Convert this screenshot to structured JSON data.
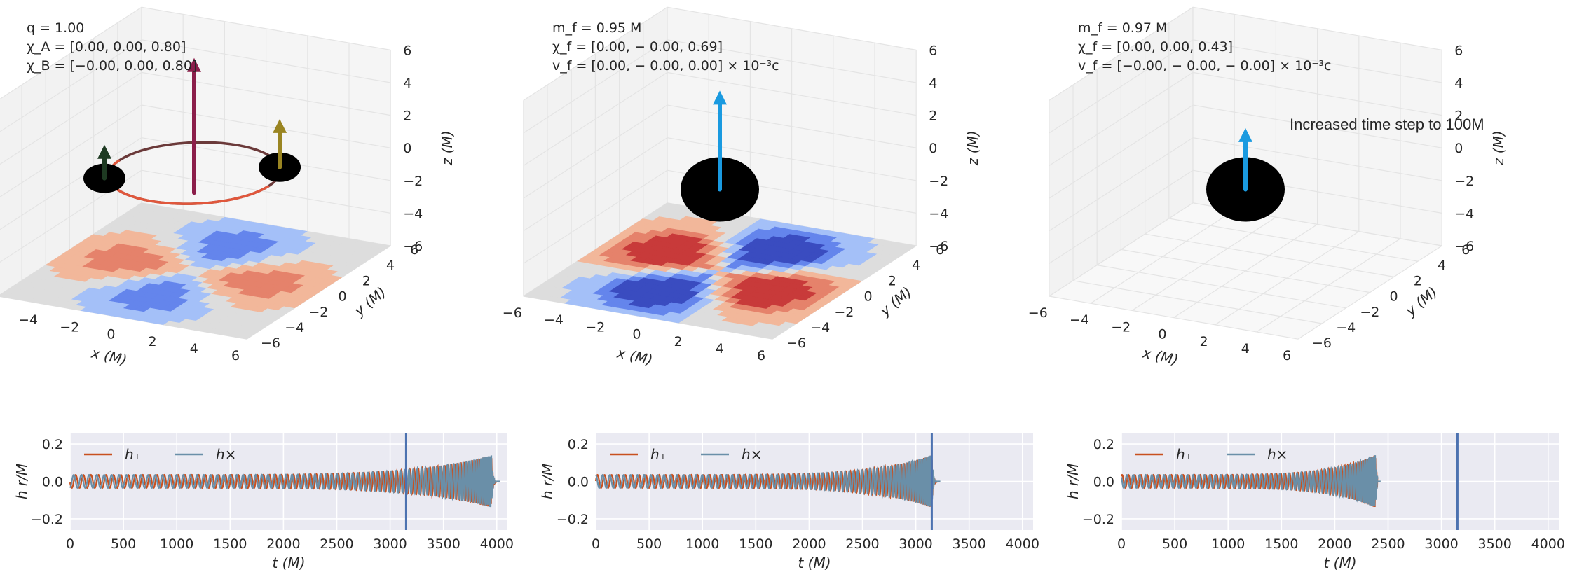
{
  "figure": {
    "colors": {
      "pane_wall": "#f2f2f2",
      "grid_3d": "#e4e4e4",
      "wave_bg": "#eaeaf2",
      "hplus": "#c8501f",
      "hcross": "#6a8fa8",
      "vline": "#4c72b0",
      "orbit": "#6b3a3a",
      "orbit_front": "#e0573c",
      "spin_total": "#8b1e4a",
      "spin_a": "#1e3a22",
      "spin_b": "#9a8522",
      "spin_final": "#1a9ae0",
      "bh": "#000000",
      "cmap": [
        "#3a4cc0",
        "#6485ec",
        "#a4c0f8",
        "#dddddd",
        "#f2b79a",
        "#e5826b",
        "#c83a3a"
      ]
    },
    "panels": [
      {
        "annotation": [
          "q = 1.00",
          "χ_A = [0.00, 0.00, 0.80]",
          "χ_B = [−0.00, 0.00, 0.80]"
        ],
        "note": "",
        "wave_vline_t": 3150,
        "wave_end_t": 4000,
        "merger_t": 3950,
        "contour_scale": 0.55,
        "contour_tilt": 0.0
      },
      {
        "annotation": [
          "m_f = 0.95 M",
          "χ_f = [0.00, − 0.00, 0.69]",
          "v_f = [0.00, − 0.00, 0.00] × 10⁻³c"
        ],
        "note": "",
        "wave_vline_t": 3150,
        "wave_end_t": 3200,
        "merger_t": 3150,
        "contour_scale": 1.0,
        "contour_tilt": 0.35
      },
      {
        "annotation": [
          "m_f = 0.97 M",
          "χ_f = [0.00, 0.00, 0.43]",
          "v_f = [−0.00, − 0.00, − 0.00] × 10⁻³c"
        ],
        "note": "Increased time step to 100M",
        "wave_vline_t": 3150,
        "wave_end_t": 2400,
        "merger_t": 2380,
        "contour_scale": 0,
        "contour_tilt": 0
      }
    ]
  },
  "chart_data": [
    {
      "type": "surface3d",
      "xlabel": "x (M)",
      "ylabel": "y (M)",
      "zlabel": "z (M)",
      "xlim": [
        -6,
        6
      ],
      "ylim": [
        -6,
        6
      ],
      "zlim": [
        -6,
        6
      ],
      "xticks": [
        -6,
        -4,
        -2,
        0,
        2,
        4,
        6
      ],
      "yticks": [
        -6,
        -4,
        -2,
        0,
        2,
        4,
        6
      ],
      "zticks": [
        -6,
        -4,
        -2,
        0,
        2,
        4,
        6
      ]
    },
    {
      "type": "line",
      "xlabel": "t (M)",
      "ylabel": "h r/M",
      "xlim": [
        0,
        4100
      ],
      "ylim": [
        -0.26,
        0.26
      ],
      "xticks": [
        0,
        500,
        1000,
        1500,
        2000,
        2500,
        3000,
        3500,
        4000
      ],
      "yticks": [
        -0.2,
        0.0,
        0.2
      ],
      "ytick_labels": [
        "−0.2",
        "0.0",
        "0.2"
      ],
      "series": [
        {
          "name": "h₊",
          "amplitude_start": 0.035,
          "amplitude_peak": 0.14
        },
        {
          "name": "h×",
          "amplitude_start": 0.035,
          "amplitude_peak": 0.14
        }
      ]
    }
  ]
}
